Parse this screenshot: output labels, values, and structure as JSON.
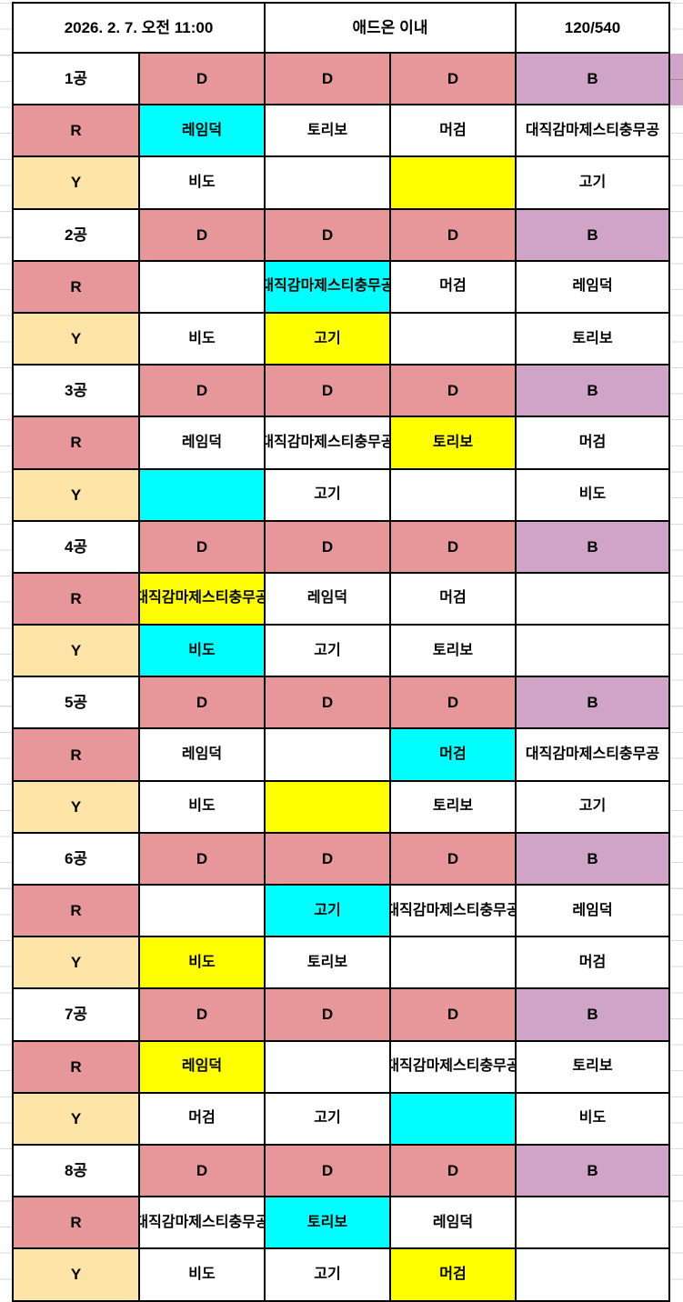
{
  "colors": {
    "salmon": "#e79699",
    "purple": "#cfa4c7",
    "peach": "#fce3a6",
    "cyan": "#00ffff",
    "yellow": "#ffff00",
    "grid": "#d9d9d9",
    "border": "#000000"
  },
  "header": {
    "datetime": "2026. 2. 7. 오전 11:00",
    "center": "애드온 이내",
    "right": "120/540"
  },
  "row_labels": {
    "r": "R",
    "y": "Y"
  },
  "groups": [
    {
      "label": "1공",
      "d": [
        {
          "t": "D",
          "bg": "salmon"
        },
        {
          "t": "D",
          "bg": "salmon"
        },
        {
          "t": "D",
          "bg": "salmon"
        },
        {
          "t": "B",
          "bg": "purple",
          "spill": true
        }
      ],
      "r": [
        {
          "t": "레임덕",
          "bg": "cyan"
        },
        {
          "t": "토리보",
          "bg": "white"
        },
        {
          "t": "머검",
          "bg": "white"
        },
        {
          "t": "대직감마제스티충무공",
          "bg": "white"
        }
      ],
      "y": [
        {
          "t": "비도",
          "bg": "white"
        },
        {
          "t": "",
          "bg": "white"
        },
        {
          "t": "",
          "bg": "yellow"
        },
        {
          "t": "고기",
          "bg": "white"
        }
      ]
    },
    {
      "label": "2공",
      "d": [
        {
          "t": "D",
          "bg": "salmon"
        },
        {
          "t": "D",
          "bg": "salmon"
        },
        {
          "t": "D",
          "bg": "salmon"
        },
        {
          "t": "B",
          "bg": "purple"
        }
      ],
      "r": [
        {
          "t": "",
          "bg": "white"
        },
        {
          "t": "대직감마제스티충무공",
          "bg": "cyan"
        },
        {
          "t": "머검",
          "bg": "white"
        },
        {
          "t": "레임덕",
          "bg": "white"
        }
      ],
      "y": [
        {
          "t": "비도",
          "bg": "white"
        },
        {
          "t": "고기",
          "bg": "yellow"
        },
        {
          "t": "",
          "bg": "white"
        },
        {
          "t": "토리보",
          "bg": "white"
        }
      ]
    },
    {
      "label": "3공",
      "d": [
        {
          "t": "D",
          "bg": "salmon"
        },
        {
          "t": "D",
          "bg": "salmon"
        },
        {
          "t": "D",
          "bg": "salmon"
        },
        {
          "t": "B",
          "bg": "purple"
        }
      ],
      "r": [
        {
          "t": "레임덕",
          "bg": "white"
        },
        {
          "t": "대직감마제스티충무공",
          "bg": "white"
        },
        {
          "t": "토리보",
          "bg": "yellow"
        },
        {
          "t": "머검",
          "bg": "white"
        }
      ],
      "y": [
        {
          "t": "",
          "bg": "cyan"
        },
        {
          "t": "고기",
          "bg": "white"
        },
        {
          "t": "",
          "bg": "white"
        },
        {
          "t": "비도",
          "bg": "white"
        }
      ]
    },
    {
      "label": "4공",
      "d": [
        {
          "t": "D",
          "bg": "salmon"
        },
        {
          "t": "D",
          "bg": "salmon"
        },
        {
          "t": "D",
          "bg": "salmon"
        },
        {
          "t": "B",
          "bg": "purple"
        }
      ],
      "r": [
        {
          "t": "대직감마제스티충무공",
          "bg": "yellow"
        },
        {
          "t": "레임덕",
          "bg": "white"
        },
        {
          "t": "머검",
          "bg": "white"
        },
        {
          "t": "",
          "bg": "white"
        }
      ],
      "y": [
        {
          "t": "비도",
          "bg": "cyan"
        },
        {
          "t": "고기",
          "bg": "white"
        },
        {
          "t": "토리보",
          "bg": "white"
        },
        {
          "t": "",
          "bg": "white"
        }
      ]
    },
    {
      "label": "5공",
      "d": [
        {
          "t": "D",
          "bg": "salmon"
        },
        {
          "t": "D",
          "bg": "salmon"
        },
        {
          "t": "D",
          "bg": "salmon"
        },
        {
          "t": "B",
          "bg": "purple"
        }
      ],
      "r": [
        {
          "t": "레임덕",
          "bg": "white"
        },
        {
          "t": "",
          "bg": "white"
        },
        {
          "t": "머검",
          "bg": "cyan"
        },
        {
          "t": "대직감마제스티충무공",
          "bg": "white"
        }
      ],
      "y": [
        {
          "t": "비도",
          "bg": "white"
        },
        {
          "t": "",
          "bg": "yellow"
        },
        {
          "t": "토리보",
          "bg": "white"
        },
        {
          "t": "고기",
          "bg": "white"
        }
      ]
    },
    {
      "label": "6공",
      "d": [
        {
          "t": "D",
          "bg": "salmon"
        },
        {
          "t": "D",
          "bg": "salmon"
        },
        {
          "t": "D",
          "bg": "salmon"
        },
        {
          "t": "B",
          "bg": "purple"
        }
      ],
      "r": [
        {
          "t": "",
          "bg": "white"
        },
        {
          "t": "고기",
          "bg": "cyan"
        },
        {
          "t": "대직감마제스티충무공",
          "bg": "white"
        },
        {
          "t": "레임덕",
          "bg": "white"
        }
      ],
      "y": [
        {
          "t": "비도",
          "bg": "yellow"
        },
        {
          "t": "토리보",
          "bg": "white"
        },
        {
          "t": "",
          "bg": "white"
        },
        {
          "t": "머검",
          "bg": "white"
        }
      ]
    },
    {
      "label": "7공",
      "d": [
        {
          "t": "D",
          "bg": "salmon"
        },
        {
          "t": "D",
          "bg": "salmon"
        },
        {
          "t": "D",
          "bg": "salmon"
        },
        {
          "t": "B",
          "bg": "purple"
        }
      ],
      "r": [
        {
          "t": "레임덕",
          "bg": "yellow"
        },
        {
          "t": "",
          "bg": "white"
        },
        {
          "t": "대직감마제스티충무공",
          "bg": "white"
        },
        {
          "t": "토리보",
          "bg": "white"
        }
      ],
      "y": [
        {
          "t": "머검",
          "bg": "white"
        },
        {
          "t": "고기",
          "bg": "white"
        },
        {
          "t": "",
          "bg": "cyan"
        },
        {
          "t": "비도",
          "bg": "white"
        }
      ]
    },
    {
      "label": "8공",
      "d": [
        {
          "t": "D",
          "bg": "salmon"
        },
        {
          "t": "D",
          "bg": "salmon"
        },
        {
          "t": "D",
          "bg": "salmon"
        },
        {
          "t": "B",
          "bg": "purple"
        }
      ],
      "r": [
        {
          "t": "대직감마제스티충무공",
          "bg": "white"
        },
        {
          "t": "토리보",
          "bg": "cyan"
        },
        {
          "t": "레임덕",
          "bg": "white"
        },
        {
          "t": "",
          "bg": "white"
        }
      ],
      "y": [
        {
          "t": "비도",
          "bg": "white"
        },
        {
          "t": "고기",
          "bg": "white"
        },
        {
          "t": "머검",
          "bg": "yellow"
        },
        {
          "t": "",
          "bg": "white"
        }
      ]
    }
  ]
}
